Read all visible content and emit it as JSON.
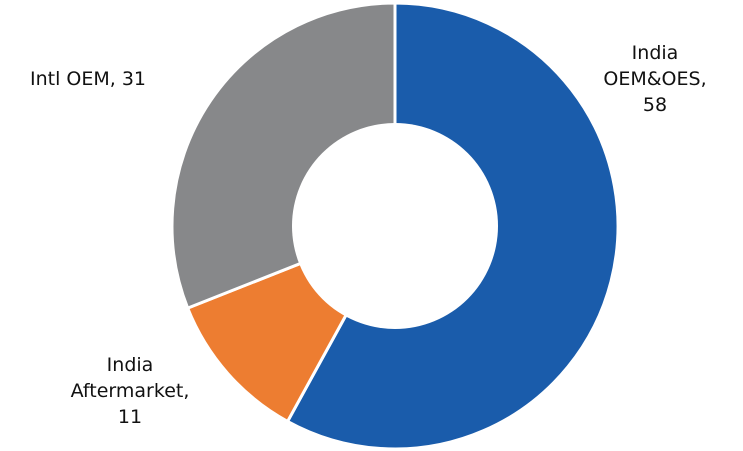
{
  "chart_data": {
    "type": "pie",
    "donut": true,
    "title": "",
    "legend": "none",
    "slices": [
      {
        "label_lines": [
          "India",
          "OEM&OES,",
          "58"
        ],
        "name": "India OEM&OES",
        "value": 58,
        "color": "#1A5CAB"
      },
      {
        "label_lines": [
          "India",
          "Aftermarket,",
          "11"
        ],
        "name": "India Aftermarket",
        "value": 11,
        "color": "#ED7D31"
      },
      {
        "label_lines": [
          "Intl OEM,  31"
        ],
        "name": "Intl OEM",
        "value": 31,
        "color": "#87888A"
      }
    ]
  }
}
